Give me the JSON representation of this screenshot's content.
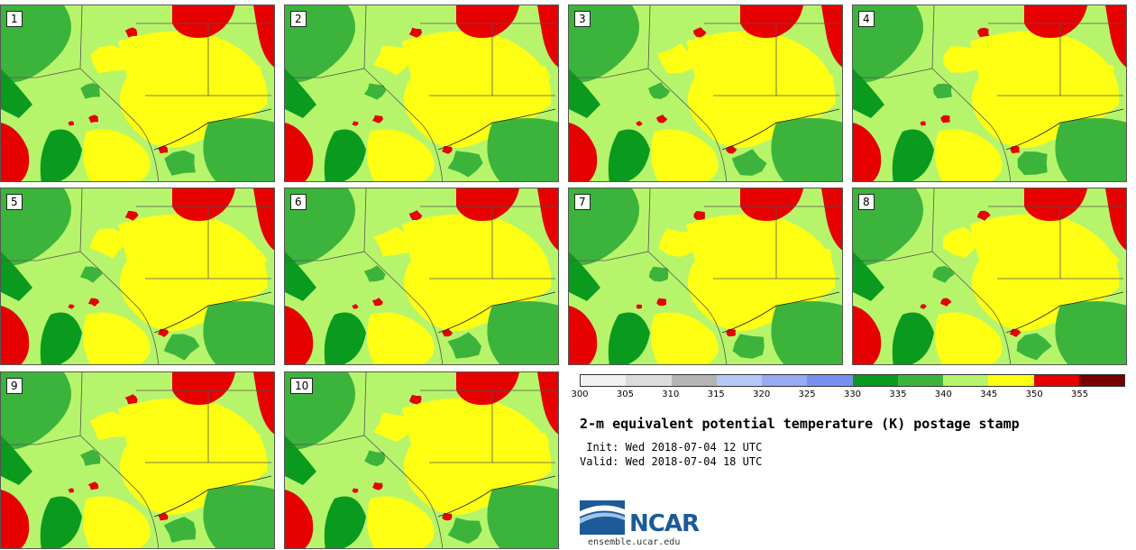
{
  "stamps": [
    {
      "label": "1"
    },
    {
      "label": "2"
    },
    {
      "label": "3"
    },
    {
      "label": "4"
    },
    {
      "label": "5"
    },
    {
      "label": "6"
    },
    {
      "label": "7"
    },
    {
      "label": "8"
    },
    {
      "label": "9"
    },
    {
      "label": "10"
    }
  ],
  "colorbar": {
    "ticks": [
      "300",
      "305",
      "310",
      "315",
      "320",
      "325",
      "330",
      "335",
      "340",
      "345",
      "350",
      "355"
    ],
    "colors": [
      "#f2f2f2",
      "#dcdcdc",
      "#b4b4b4",
      "#b4c8fa",
      "#96aaf5",
      "#7890f0",
      "#0a9b1e",
      "#3cb43c",
      "#b6f56b",
      "#ffff14",
      "#e60000",
      "#780000"
    ]
  },
  "title": "2-m equivalent potential temperature (K) postage stamp",
  "init": " Init: Wed 2018-07-04 12 UTC",
  "valid": "Valid: Wed 2018-07-04 18 UTC",
  "logo": {
    "text": "NCAR",
    "site": "ensemble.ucar.edu"
  },
  "map_colors": {
    "ocean_bg": "#b6f56b",
    "green": "#3cb43c",
    "dark_green": "#0a9b1e",
    "yellow": "#ffff14",
    "red": "#e60000",
    "border": "#555555"
  }
}
